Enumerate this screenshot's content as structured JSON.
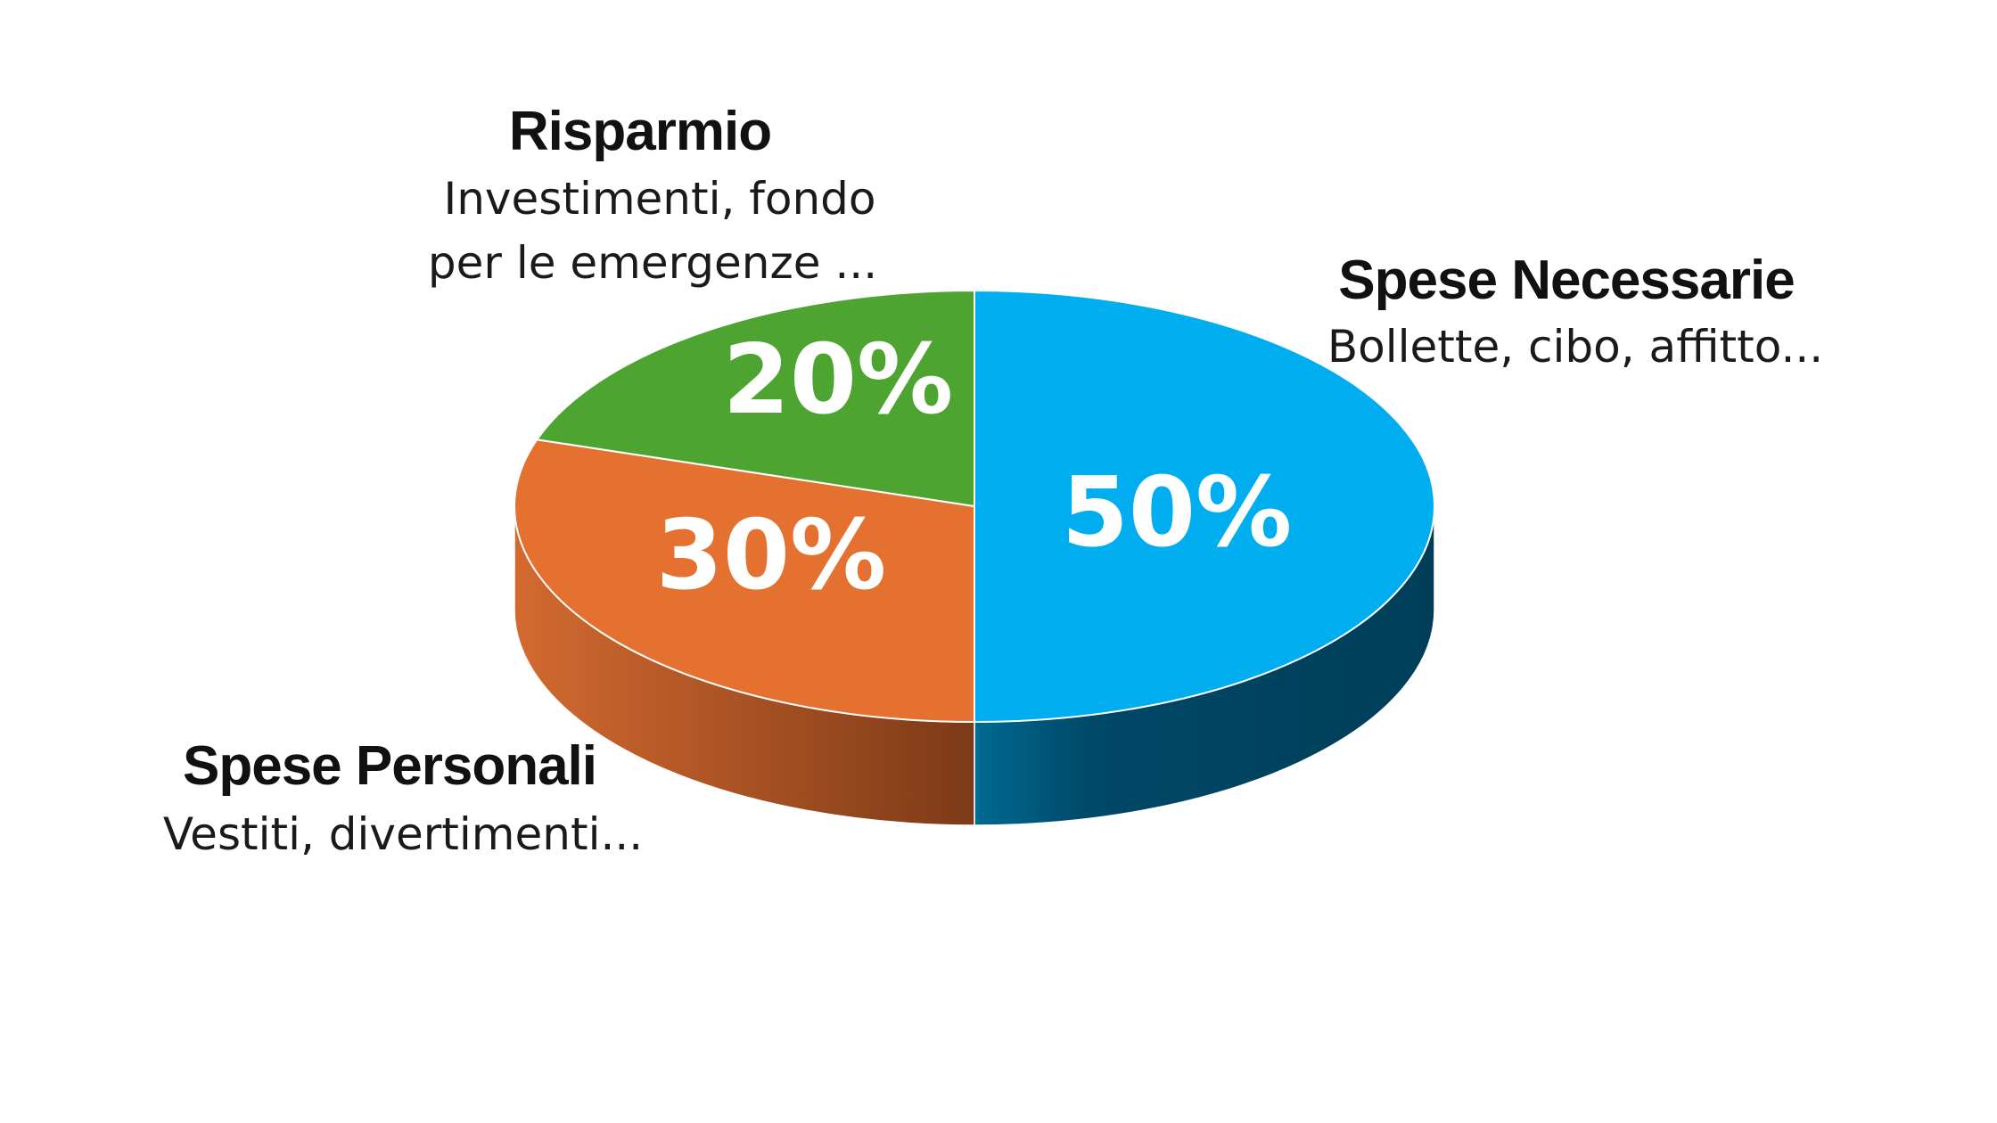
{
  "chart_data": {
    "type": "pie",
    "categories": [
      "Spese Necessarie",
      "Spese Personali",
      "Risparmio"
    ],
    "values": [
      50,
      30,
      20
    ],
    "value_labels": [
      "50%",
      "30%",
      "20%"
    ],
    "descriptions": [
      [
        "Bollette, cibo, affitto..."
      ],
      [
        "Vestiti, divertimenti..."
      ],
      [
        "Investimenti, fondo",
        "per le emergenze ..."
      ]
    ],
    "colors": [
      "#00aeef",
      "#e57131",
      "#4ea431"
    ],
    "side_colors": [
      "#00405c",
      "#a6481a"
    ],
    "style": "3d",
    "legend": "none"
  }
}
